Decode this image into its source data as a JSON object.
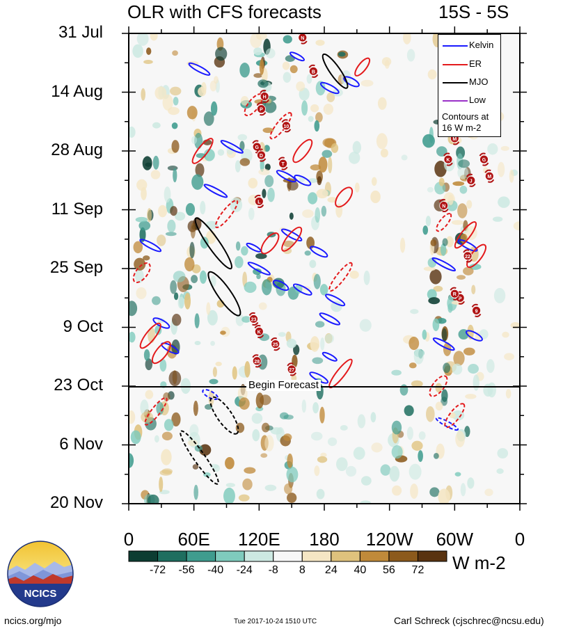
{
  "header": {
    "title": "OLR with CFS forecasts",
    "region": "15S - 5S"
  },
  "colors": {
    "kelvin": "#1a1aff",
    "er": "#e31a1c",
    "mjo": "#000000",
    "low": "#9a30c8",
    "tc_fill": "#b01414",
    "colorbar": [
      "#0d3d32",
      "#1e6e5f",
      "#3f9c8e",
      "#7fcbbd",
      "#cde9e2",
      "#f7f7f7",
      "#f5e6c4",
      "#dfc27d",
      "#c08a3a",
      "#8c5a1c",
      "#593310"
    ]
  },
  "colorbar": {
    "labels": [
      "-72",
      "-56",
      "-40",
      "-24",
      "-8",
      "8",
      "24",
      "40",
      "56",
      "72"
    ],
    "units": "W m-2"
  },
  "legend": {
    "items": [
      "Kelvin",
      "ER",
      "MJO",
      "Low"
    ],
    "note_line1": "Contours at",
    "note_line2": "16 W m-2"
  },
  "annotation": {
    "begin_forecast": "Begin Forecast"
  },
  "footer": {
    "url": "ncics.org/mjo",
    "timestamp": "Tue 2017-10-24 1510 UTC",
    "author": "Carl Schreck (cjschrec@ncsu.edu)",
    "logo_text": "NCICS"
  },
  "chart_data": {
    "type": "heatmap",
    "title": "OLR with CFS forecasts",
    "xlabel": "",
    "ylabel": "",
    "x_ticks": [
      "0",
      "60E",
      "120E",
      "180",
      "120W",
      "60W",
      "0"
    ],
    "x_range_deg_east": [
      0,
      360
    ],
    "y_ticks": [
      "31 Jul",
      "14 Aug",
      "28 Aug",
      "11 Sep",
      "25 Sep",
      "9 Oct",
      "23 Oct",
      "6 Nov",
      "20 Nov"
    ],
    "y_range_days_after_jul31": [
      0,
      112
    ],
    "forecast_start": "23 Oct",
    "legend_placement": "top-right",
    "contour_interval": "16 W m-2",
    "series": [
      {
        "name": "Kelvin",
        "contours": [
          {
            "lon": 155,
            "day": 5.5
          },
          {
            "lon": 65,
            "day": 8.5
          },
          {
            "lon": 185,
            "day": 13
          },
          {
            "lon": 205,
            "day": 11.5
          },
          {
            "lon": 95,
            "day": 27
          },
          {
            "lon": 145,
            "day": 34
          },
          {
            "lon": 160,
            "day": 35
          },
          {
            "lon": 80,
            "day": 37.5
          },
          {
            "lon": 150,
            "day": 48
          },
          {
            "lon": 175,
            "day": 52
          },
          {
            "lon": 115,
            "day": 51
          },
          {
            "lon": 20,
            "day": 50.5
          },
          {
            "lon": 160,
            "day": 61
          },
          {
            "lon": 140,
            "day": 60
          },
          {
            "lon": 120,
            "day": 56
          },
          {
            "lon": 190,
            "day": 63.5
          },
          {
            "lon": 30,
            "day": 69
          },
          {
            "lon": 290,
            "day": 55
          },
          {
            "lon": 185,
            "day": 68
          },
          {
            "lon": 38,
            "day": 75
          },
          {
            "lon": 185,
            "day": 77
          },
          {
            "lon": 290,
            "day": 74
          },
          {
            "lon": 175,
            "day": 82
          },
          {
            "lon": 75,
            "day": 86
          },
          {
            "lon": 293,
            "day": 93
          },
          {
            "lon": 312,
            "day": 50.5
          },
          {
            "lon": 318,
            "day": 72
          }
        ]
      },
      {
        "name": "ER",
        "contours": [
          {
            "lon": 215,
            "day": 8
          },
          {
            "lon": 140,
            "day": 22
          },
          {
            "lon": 160,
            "day": 28
          },
          {
            "lon": 198,
            "day": 39
          },
          {
            "lon": 90,
            "day": 43
          },
          {
            "lon": 150,
            "day": 49
          },
          {
            "lon": 130,
            "day": 50
          },
          {
            "lon": 195,
            "day": 58
          },
          {
            "lon": 20,
            "day": 72
          },
          {
            "lon": 30,
            "day": 76
          },
          {
            "lon": 290,
            "day": 45
          },
          {
            "lon": 310,
            "day": 48
          },
          {
            "lon": 320,
            "day": 53
          },
          {
            "lon": 12,
            "day": 57
          },
          {
            "lon": 25,
            "day": 90
          },
          {
            "lon": 300,
            "day": 91
          },
          {
            "lon": 285,
            "day": 84
          },
          {
            "lon": 195,
            "day": 81
          },
          {
            "lon": 68,
            "day": 28
          },
          {
            "lon": 115,
            "day": 17
          }
        ]
      },
      {
        "name": "MJO",
        "contours": [
          {
            "lon": 190,
            "day": 9
          },
          {
            "lon": 78,
            "day": 50
          },
          {
            "lon": 88,
            "day": 62
          },
          {
            "lon": 88,
            "day": 91
          },
          {
            "lon": 65,
            "day": 101
          }
        ]
      },
      {
        "name": "Low",
        "contours": []
      }
    ],
    "tropical_cyclones": [
      "N",
      "11",
      "F",
      "B",
      "J",
      "H",
      "K",
      "P",
      "S",
      "10",
      "L",
      "M",
      "G",
      "K",
      "J",
      "T",
      "D",
      "G",
      "M",
      "L",
      "22",
      "P",
      "R",
      "N",
      "23",
      "9",
      "K",
      "25",
      "28",
      "27"
    ]
  }
}
